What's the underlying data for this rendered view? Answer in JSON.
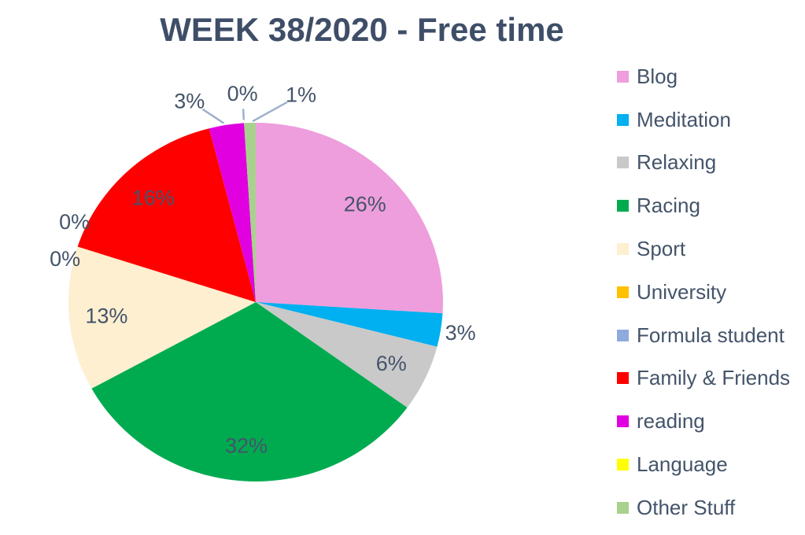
{
  "chart_data": {
    "type": "pie",
    "title": "WEEK 38/2020 - Free time",
    "start_angle_deg": 0,
    "direction": "clockwise",
    "legend_position": "right",
    "text_color": "#44546A",
    "leader_line_color": "#9FB0CC",
    "slices": [
      {
        "label": "Blog",
        "value_pct": 26,
        "data_label": "26%",
        "color": "#EE9EDC",
        "label_placement": "inside"
      },
      {
        "label": "Meditation",
        "value_pct": 3,
        "data_label": "3%",
        "color": "#00B0F0",
        "label_placement": "outside",
        "label_offset": [
          25,
          3
        ]
      },
      {
        "label": "Relaxing",
        "value_pct": 6,
        "data_label": "6%",
        "color": "#C9C9C9",
        "label_placement": "inside"
      },
      {
        "label": "Racing",
        "value_pct": 32,
        "data_label": "32%",
        "color": "#00AB50",
        "label_placement": "inside"
      },
      {
        "label": "Sport",
        "value_pct": 13,
        "data_label": "13%",
        "color": "#FDEFD0",
        "label_placement": "inside"
      },
      {
        "label": "University",
        "value_pct": 0,
        "data_label": "0%",
        "color": "#FFC000",
        "label_placement": "outside",
        "label_offset": [
          -4,
          -32
        ]
      },
      {
        "label": "Formula student",
        "value_pct": 0,
        "data_label": "0%",
        "color": "#8FAADC",
        "label_placement": "outside",
        "label_offset": [
          -16,
          15
        ]
      },
      {
        "label": "Family & Friends",
        "value_pct": 16,
        "data_label": "16%",
        "color": "#FE0000",
        "label_placement": "inside"
      },
      {
        "label": "reading",
        "value_pct": 3,
        "data_label": "3%",
        "color": "#E000E0",
        "label_placement": "outside",
        "label_offset": [
          -47,
          -31
        ],
        "leader_line": true
      },
      {
        "label": "Language",
        "value_pct": 0,
        "data_label": "0%",
        "color": "#FFFF00",
        "label_placement": "outside",
        "label_offset": [
          -2,
          -38
        ],
        "leader_line": true
      },
      {
        "label": "Other Stuff",
        "value_pct": 1,
        "data_label": "1%",
        "color": "#A9D18E",
        "label_placement": "outside",
        "label_offset": [
          65,
          -36
        ],
        "leader_line": true
      }
    ]
  }
}
